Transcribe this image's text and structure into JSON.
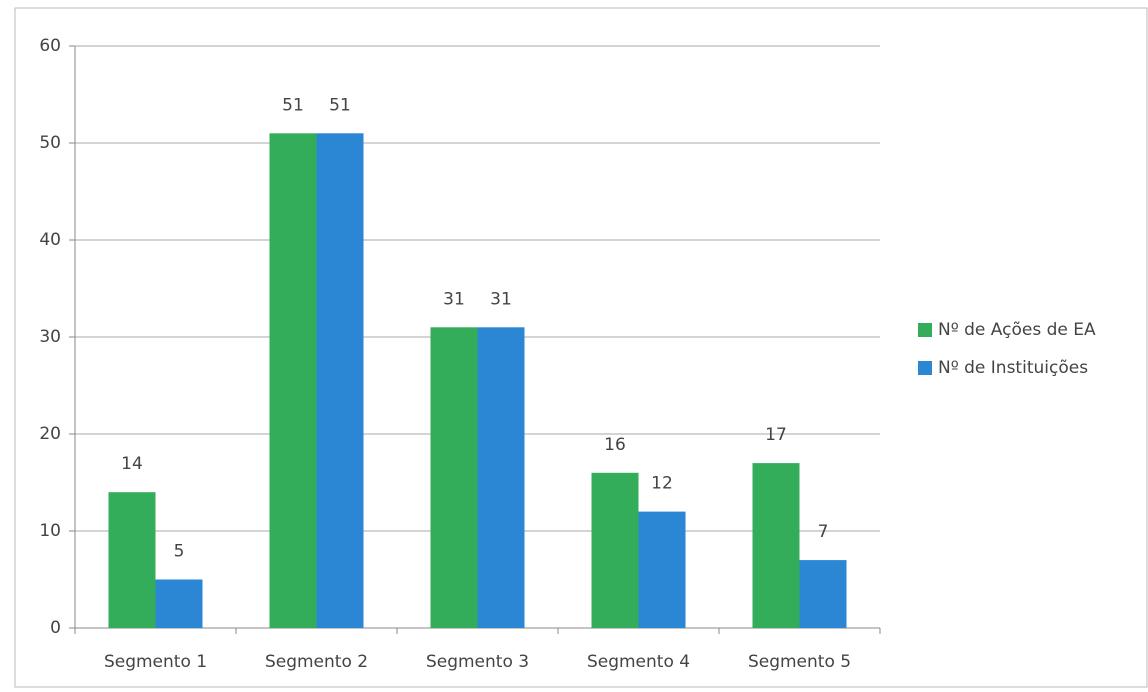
{
  "chart_data": {
    "type": "bar",
    "categories": [
      "Segmento 1",
      "Segmento 2",
      "Segmento 3",
      "Segmento 4",
      "Segmento 5"
    ],
    "series": [
      {
        "name": "Nº de Ações de EA",
        "color": "#34ad5a",
        "values": [
          14,
          51,
          31,
          16,
          17
        ]
      },
      {
        "name": "Nº de Instituições",
        "color": "#2b86d4",
        "values": [
          5,
          51,
          31,
          12,
          7
        ]
      }
    ],
    "ylim": [
      0,
      60
    ],
    "yticks": [
      0,
      10,
      20,
      30,
      40,
      50,
      60
    ],
    "grid": true,
    "legend": "right"
  }
}
